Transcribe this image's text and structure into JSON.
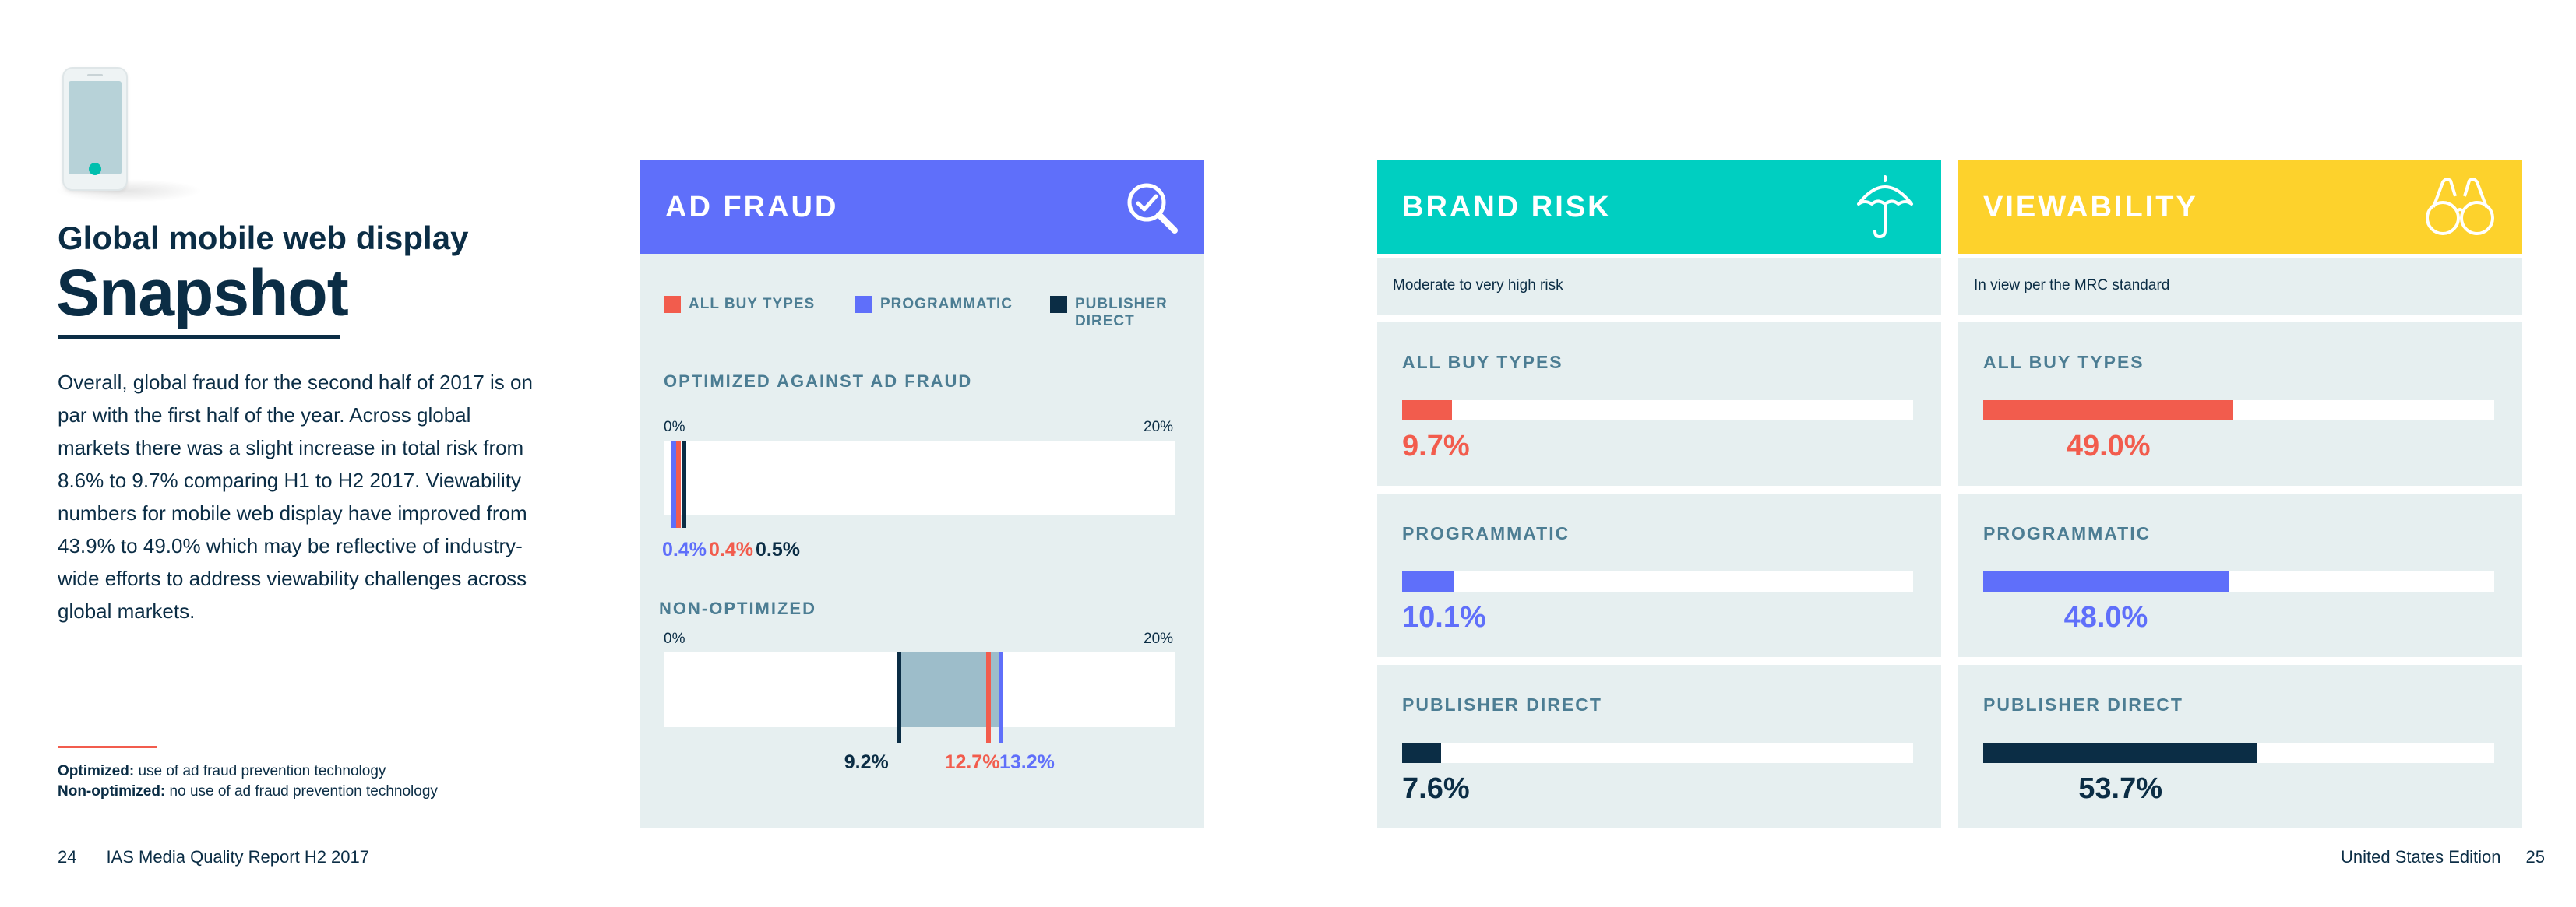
{
  "left": {
    "subtitle": "Global mobile web display",
    "title": "Snapshot",
    "paragraph": "Overall, global fraud for the second half of 2017 is on par with the first half of the year. Across global markets there was a slight increase in total risk from 8.6% to 9.7% comparing H1 to H2 2017. Viewability numbers for mobile web display have improved from 43.9% to 49.0% which may be reflective of industry-wide efforts to address viewability challenges across global markets.",
    "notes": [
      {
        "term": "Optimized:",
        "text": " use of ad fraud prevention technology"
      },
      {
        "term": "Non-optimized:",
        "text": " no use of ad fraud prevention technology"
      }
    ]
  },
  "footer": {
    "left_page": "24",
    "left_text": "IAS Media Quality Report H2 2017",
    "right_text": "United States Edition",
    "right_page": "25"
  },
  "colors": {
    "all_buy_types": "#f25c4d",
    "programmatic": "#5f6ffa",
    "publisher_direct": "#0b2d45",
    "ad_fraud_header": "#5f6ffa",
    "brand_risk_header": "#00cfc1",
    "viewability_header": "#fdd22c",
    "range_fill": "#9dbdca"
  },
  "ad_fraud": {
    "title": "AD FRAUD",
    "icon": "magnifier-check-icon",
    "legend": [
      {
        "key": "all_buy_types",
        "label": "ALL BUY TYPES"
      },
      {
        "key": "programmatic",
        "label": "PROGRAMMATIC"
      },
      {
        "key": "publisher_direct",
        "label": "PUBLISHER DIRECT"
      }
    ],
    "scale_min_label": "0%",
    "scale_max_label": "20%",
    "scale_max": 20,
    "optimized": {
      "label": "OPTIMIZED AGAINST AD FRAUD",
      "values": {
        "programmatic": 0.4,
        "all_buy_types": 0.4,
        "publisher_direct": 0.5
      },
      "labels": {
        "programmatic": "0.4%",
        "all_buy_types": "0.4%",
        "publisher_direct": "0.5%"
      }
    },
    "non_optimized": {
      "label": "NON-OPTIMIZED",
      "values": {
        "publisher_direct": 9.2,
        "all_buy_types": 12.7,
        "programmatic": 13.2
      },
      "labels": {
        "publisher_direct": "9.2%",
        "all_buy_types": "12.7%",
        "programmatic": "13.2%"
      }
    }
  },
  "brand_risk": {
    "title": "BRAND RISK",
    "icon": "umbrella-icon",
    "note": "Moderate to very high risk",
    "scale_max": 100,
    "items": [
      {
        "key": "all_buy_types",
        "label": "ALL BUY TYPES",
        "value": 9.7,
        "display": "9.7%"
      },
      {
        "key": "programmatic",
        "label": "PROGRAMMATIC",
        "value": 10.1,
        "display": "10.1%"
      },
      {
        "key": "publisher_direct",
        "label": "PUBLISHER DIRECT",
        "value": 7.6,
        "display": "7.6%"
      }
    ]
  },
  "viewability": {
    "title": "VIEWABILITY",
    "icon": "binoculars-icon",
    "note": "In view per the MRC standard",
    "scale_max": 100,
    "items": [
      {
        "key": "all_buy_types",
        "label": "ALL BUY TYPES",
        "value": 49.0,
        "display": "49.0%"
      },
      {
        "key": "programmatic",
        "label": "PROGRAMMATIC",
        "value": 48.0,
        "display": "48.0%"
      },
      {
        "key": "publisher_direct",
        "label": "PUBLISHER DIRECT",
        "value": 53.7,
        "display": "53.7%"
      }
    ]
  }
}
